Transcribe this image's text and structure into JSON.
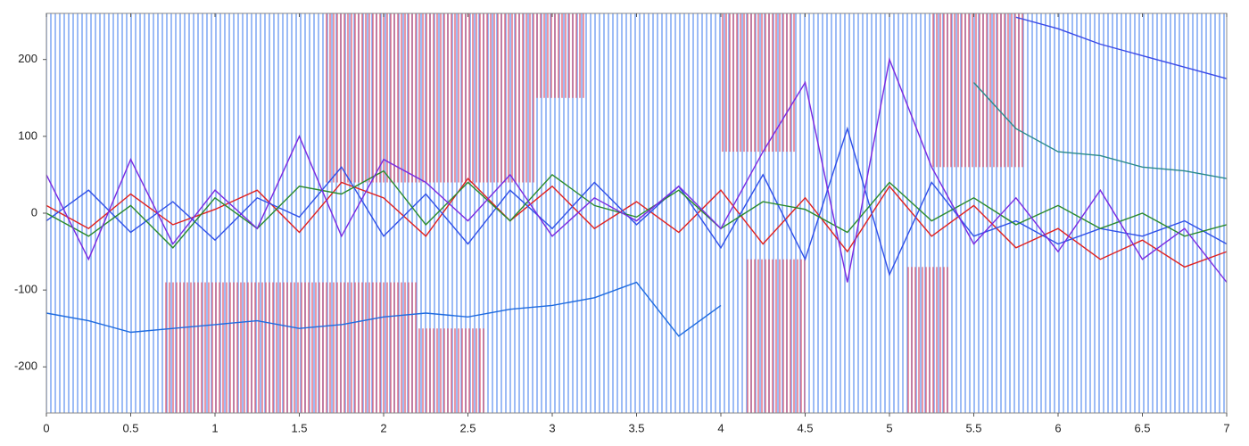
{
  "chart_data": {
    "type": "line",
    "x": [
      0,
      0.25,
      0.5,
      0.75,
      1,
      1.25,
      1.5,
      1.75,
      2,
      2.25,
      2.5,
      2.75,
      3,
      3.25,
      3.5,
      3.75,
      4,
      4.25,
      4.5,
      4.75,
      5,
      5.25,
      5.5,
      5.75,
      6,
      6.25,
      6.5,
      6.75,
      7
    ],
    "series": [
      {
        "color": "#e0201f",
        "values": [
          10,
          -20,
          25,
          -15,
          5,
          30,
          -25,
          40,
          20,
          -30,
          45,
          -10,
          35,
          -20,
          15,
          -25,
          30,
          -40,
          20,
          -50,
          35,
          -30,
          10,
          -45,
          -20,
          -60,
          -35,
          -70,
          -50
        ]
      },
      {
        "color": "#2f4fe8",
        "values": [
          -10,
          30,
          -25,
          15,
          -35,
          20,
          -5,
          60,
          -30,
          25,
          -40,
          30,
          -20,
          40,
          -15,
          35,
          -45,
          50,
          -60,
          110,
          -80,
          40,
          -30,
          -10,
          -40,
          -20,
          -30,
          -10,
          -40
        ]
      },
      {
        "color": "#2a8a2a",
        "values": [
          0,
          -30,
          10,
          -45,
          20,
          -20,
          35,
          25,
          55,
          -15,
          40,
          -10,
          50,
          10,
          -5,
          30,
          -20,
          15,
          5,
          -25,
          40,
          -10,
          20,
          -15,
          10,
          -20,
          0,
          -30,
          -15
        ]
      },
      {
        "color": "#7a2ae0",
        "values": [
          50,
          -60,
          70,
          -40,
          30,
          -20,
          100,
          -30,
          70,
          40,
          -10,
          50,
          -30,
          20,
          -10,
          35,
          -20,
          80,
          170,
          -90,
          200,
          60,
          -40,
          20,
          -50,
          30,
          -60,
          -20,
          -90
        ]
      },
      {
        "color": "#2a8a8a",
        "values": [
          null,
          null,
          null,
          null,
          null,
          null,
          null,
          null,
          null,
          null,
          null,
          null,
          null,
          null,
          null,
          null,
          null,
          null,
          null,
          null,
          null,
          null,
          170,
          110,
          80,
          75,
          60,
          55,
          45
        ]
      },
      {
        "color": "#1e6be0",
        "values": [
          -130,
          -140,
          -155,
          -150,
          -145,
          -140,
          -150,
          -145,
          -135,
          -130,
          -135,
          -125,
          -120,
          -110,
          -90,
          -160,
          -120,
          null,
          null,
          null,
          null,
          null,
          null,
          null,
          null,
          null,
          null,
          null,
          null
        ]
      },
      {
        "color": "#3a4ae8",
        "values": [
          null,
          null,
          null,
          null,
          null,
          null,
          null,
          null,
          null,
          null,
          null,
          null,
          null,
          null,
          null,
          null,
          null,
          null,
          null,
          null,
          null,
          null,
          null,
          255,
          240,
          220,
          205,
          190,
          175
        ]
      }
    ],
    "stripe_color": "#5b8ff0",
    "region_color": "#d9455f",
    "regions": [
      [
        1.65,
        2.9,
        40,
        260
      ],
      [
        2.9,
        3.2,
        150,
        260
      ],
      [
        4.0,
        4.45,
        80,
        260
      ],
      [
        5.25,
        5.8,
        60,
        260
      ],
      [
        0.7,
        2.2,
        -260,
        -90
      ],
      [
        2.2,
        2.6,
        -260,
        -150
      ],
      [
        4.15,
        4.5,
        -260,
        -60
      ],
      [
        5.1,
        5.35,
        -260,
        -70
      ]
    ],
    "xlim": [
      0,
      7
    ],
    "xticks": [
      0,
      0.5,
      1,
      1.5,
      2,
      2.5,
      3,
      3.5,
      4,
      4.5,
      5,
      5.5,
      6,
      6.5,
      7
    ],
    "ylim": [
      -260,
      260
    ],
    "yticks": [
      -200,
      -100,
      0,
      100,
      200
    ]
  }
}
